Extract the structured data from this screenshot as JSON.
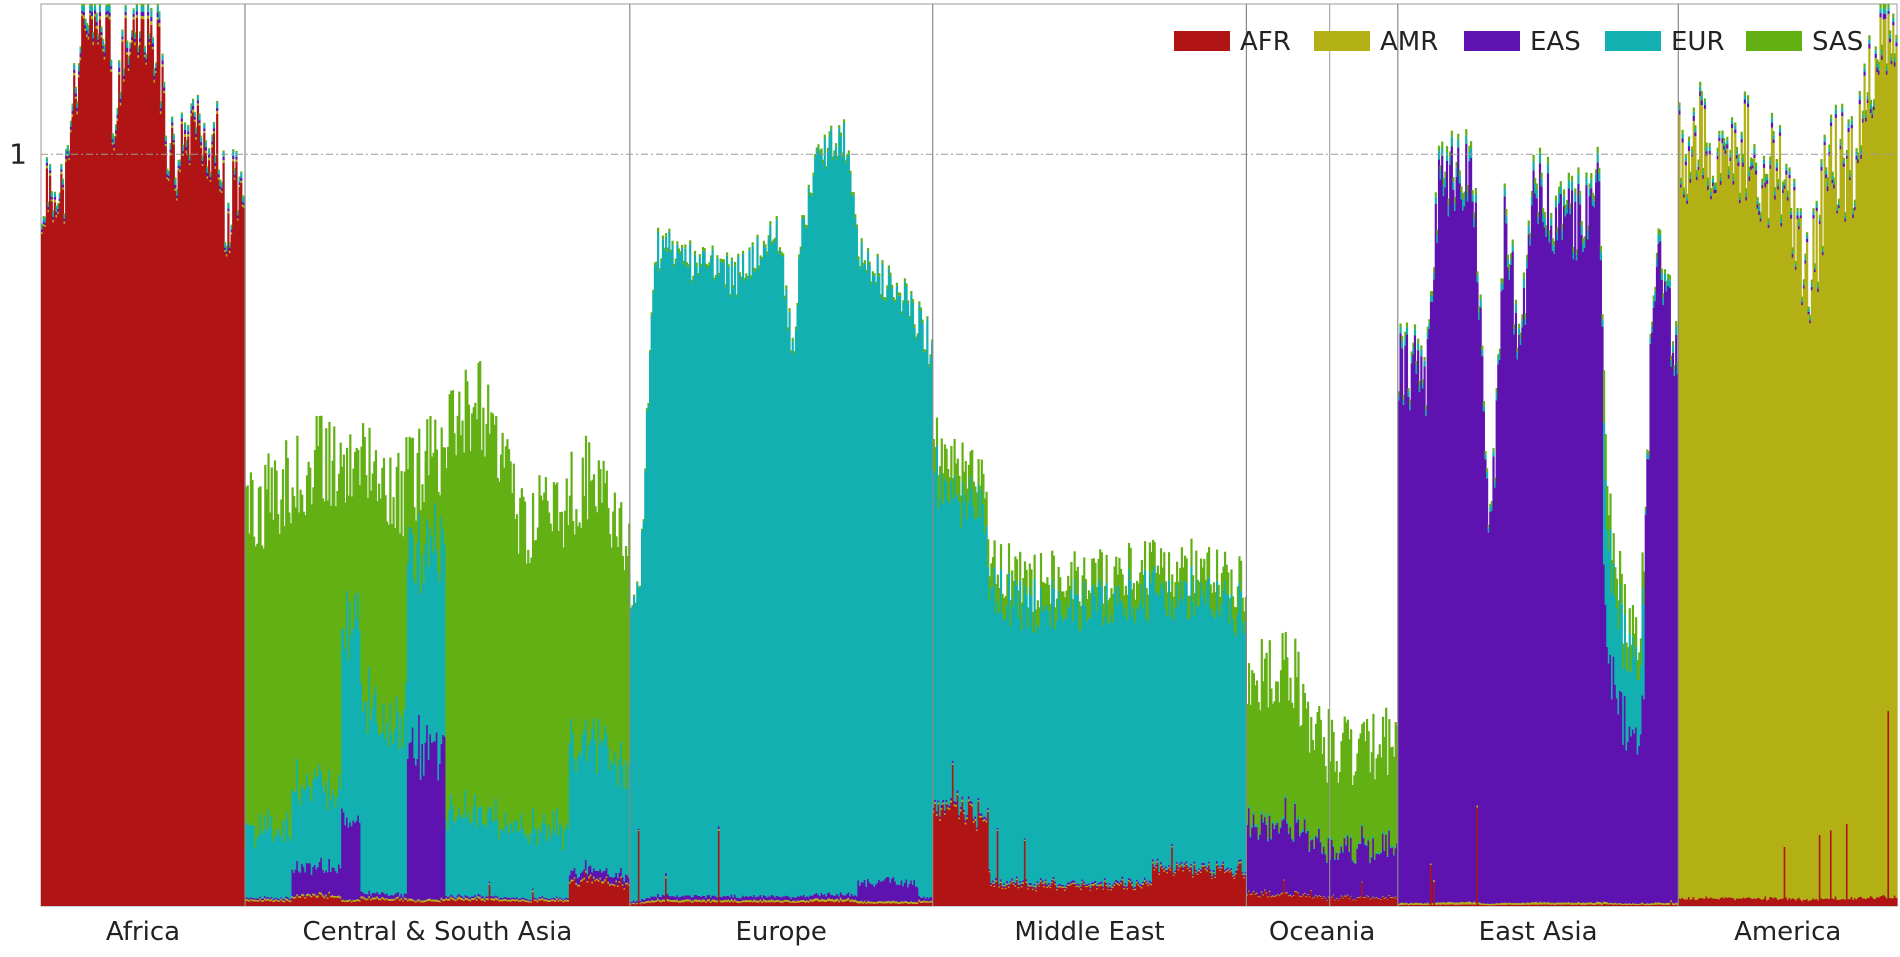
{
  "chart_data": {
    "type": "bar",
    "subtype": "stacked-admixture",
    "title": "",
    "xlabel": "",
    "ylabel": "",
    "y_tick_labels": [
      "1"
    ],
    "y_reference_line": 1,
    "ylim": [
      0,
      1.2
    ],
    "grid": "dash-dot horizontal reference line at 1",
    "legend": {
      "placement": "top-right",
      "orientation": "horizontal"
    },
    "series": [
      {
        "name": "AFR",
        "color": "#b01414"
      },
      {
        "name": "AMR",
        "color": "#b2b014"
      },
      {
        "name": "EAS",
        "color": "#5e12b0"
      },
      {
        "name": "EUR",
        "color": "#12b0b0"
      },
      {
        "name": "SAS",
        "color": "#62b014"
      }
    ],
    "categories": [
      "Africa",
      "Central & South Asia",
      "Europe",
      "Middle East",
      "Oceania",
      "East Asia",
      "America"
    ],
    "segments": [
      {
        "label": "Africa",
        "span": 0.0264,
        "ampl": 0.055,
        "profile": [
          [
            0.0,
            0.94
          ],
          [
            0.02,
            0.96
          ],
          [
            0.07,
            0.93
          ],
          [
            0.13,
            0.98
          ],
          [
            0.2,
            1.18
          ],
          [
            0.33,
            1.19
          ],
          [
            0.36,
            0.98
          ],
          [
            0.4,
            1.16
          ],
          [
            0.57,
            1.17
          ],
          [
            0.63,
            1.0
          ],
          [
            0.78,
            1.03
          ],
          [
            0.83,
            1.0
          ],
          [
            0.86,
            1.06
          ],
          [
            0.89,
            0.98
          ],
          [
            0.91,
            0.87
          ],
          [
            0.94,
            0.96
          ],
          [
            1.0,
            1.0
          ]
        ],
        "comp": [
          0.985,
          0.003,
          0.004,
          0.006,
          0.002
        ],
        "blocks": []
      },
      {
        "label": "Central & South Asia",
        "span": 0.0498,
        "ampl": 0.065,
        "profile": [
          [
            0.0,
            0.52
          ],
          [
            0.1,
            0.56
          ],
          [
            0.2,
            0.6
          ],
          [
            0.3,
            0.58
          ],
          [
            0.4,
            0.55
          ],
          [
            0.5,
            0.6
          ],
          [
            0.6,
            0.68
          ],
          [
            0.65,
            0.62
          ],
          [
            0.72,
            0.52
          ],
          [
            0.8,
            0.52
          ],
          [
            0.9,
            0.57
          ],
          [
            1.0,
            0.46
          ]
        ],
        "comp": [
          0.012,
          0.004,
          0.004,
          0.17,
          0.81
        ],
        "blocks": [
          {
            "from": 0.12,
            "to": 0.3,
            "comp": [
              0.02,
              0.004,
              0.06,
              0.18,
              0.736
            ]
          },
          {
            "from": 0.25,
            "to": 0.3,
            "comp": [
              0.01,
              0.004,
              0.18,
              0.45,
              0.356
            ]
          },
          {
            "from": 0.3,
            "to": 0.42,
            "comp": [
              0.015,
              0.004,
              0.01,
              0.42,
              0.551
            ]
          },
          {
            "from": 0.42,
            "to": 0.52,
            "comp": [
              0.01,
              0.004,
              0.34,
              0.45,
              0.196
            ]
          },
          {
            "from": 0.84,
            "to": 1.0,
            "comp": [
              0.06,
              0.004,
              0.02,
              0.3,
              0.616
            ]
          }
        ]
      },
      {
        "label": "Europe",
        "span": 0.0392,
        "ampl": 0.03,
        "profile": [
          [
            0.0,
            0.42
          ],
          [
            0.03,
            0.4
          ],
          [
            0.08,
            0.88
          ],
          [
            0.2,
            0.86
          ],
          [
            0.35,
            0.84
          ],
          [
            0.49,
            0.9
          ],
          [
            0.54,
            0.72
          ],
          [
            0.56,
            0.88
          ],
          [
            0.62,
            1.0
          ],
          [
            0.71,
            1.02
          ],
          [
            0.76,
            0.86
          ],
          [
            0.9,
            0.82
          ],
          [
            1.0,
            0.74
          ]
        ],
        "comp": [
          0.006,
          0.003,
          0.006,
          0.98,
          0.005
        ],
        "blocks": [
          {
            "from": 0.75,
            "to": 0.95,
            "comp": [
              0.004,
              0.003,
              0.03,
              0.958,
              0.005
            ]
          }
        ]
      },
      {
        "label": "Middle East",
        "span": 0.0406,
        "ampl": 0.04,
        "profile": [
          [
            0.0,
            0.62
          ],
          [
            0.08,
            0.58
          ],
          [
            0.16,
            0.58
          ],
          [
            0.18,
            0.46
          ],
          [
            0.3,
            0.43
          ],
          [
            0.5,
            0.44
          ],
          [
            0.7,
            0.45
          ],
          [
            0.85,
            0.45
          ],
          [
            1.0,
            0.43
          ]
        ],
        "comp": [
          0.06,
          0.004,
          0.006,
          0.85,
          0.08
        ],
        "blocks": [
          {
            "from": 0.0,
            "to": 0.18,
            "comp": [
              0.22,
              0.004,
              0.006,
              0.7,
              0.07
            ]
          },
          {
            "from": 0.7,
            "to": 1.0,
            "comp": [
              0.11,
              0.004,
              0.006,
              0.8,
              0.08
            ]
          }
        ]
      },
      {
        "label": "Oceania",
        "span": 0.0196,
        "ampl": 0.05,
        "profile": [
          [
            0.0,
            0.3
          ],
          [
            0.3,
            0.32
          ],
          [
            0.45,
            0.22
          ],
          [
            0.7,
            0.2
          ],
          [
            1.0,
            0.22
          ]
        ],
        "comp": [
          0.05,
          0.004,
          0.3,
          0.01,
          0.636
        ],
        "blocks": []
      },
      {
        "label": "East Asia",
        "span": 0.0363,
        "ampl": 0.055,
        "profile": [
          [
            0.0,
            0.73
          ],
          [
            0.1,
            0.72
          ],
          [
            0.15,
            0.98
          ],
          [
            0.27,
            0.98
          ],
          [
            0.33,
            0.48
          ],
          [
            0.38,
            0.92
          ],
          [
            0.44,
            0.74
          ],
          [
            0.48,
            0.98
          ],
          [
            0.58,
            0.92
          ],
          [
            0.65,
            0.93
          ],
          [
            0.72,
            0.98
          ],
          [
            0.74,
            0.64
          ],
          [
            0.76,
            0.5
          ],
          [
            0.8,
            0.4
          ],
          [
            0.86,
            0.36
          ],
          [
            0.88,
            0.52
          ],
          [
            0.92,
            0.9
          ],
          [
            0.94,
            0.88
          ],
          [
            1.0,
            0.7
          ]
        ],
        "comp": [
          0.002,
          0.003,
          0.975,
          0.012,
          0.008
        ],
        "blocks": [
          {
            "from": 0.73,
            "to": 0.88,
            "comp": [
              0.004,
              0.004,
              0.62,
              0.28,
              0.092
            ]
          }
        ]
      },
      {
        "label": "America",
        "span": 0.0283,
        "ampl": 0.075,
        "profile": [
          [
            0.0,
            1.02
          ],
          [
            0.2,
            1.03
          ],
          [
            0.45,
            0.98
          ],
          [
            0.6,
            0.82
          ],
          [
            0.7,
            1.02
          ],
          [
            0.78,
            0.98
          ],
          [
            0.85,
            1.05
          ],
          [
            0.93,
            1.18
          ],
          [
            1.0,
            1.2
          ]
        ],
        "comp": [
          0.01,
          0.975,
          0.005,
          0.005,
          0.005
        ],
        "blocks": []
      }
    ]
  }
}
